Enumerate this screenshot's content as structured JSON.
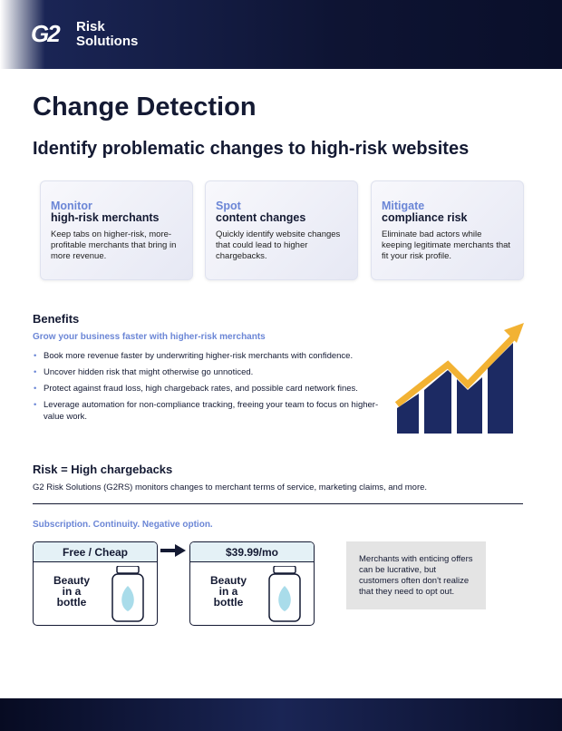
{
  "header": {
    "logo_mark": "G2",
    "logo_line1": "Risk",
    "logo_line2": "Solutions"
  },
  "title": "Change Detection",
  "subtitle": "Identify problematic changes to high-risk websites",
  "cards": [
    {
      "keyword": "Monitor",
      "subject": "high-risk merchants",
      "text": "Keep tabs on higher-risk, more-profitable merchants that bring in more revenue."
    },
    {
      "keyword": "Spot",
      "subject": "content changes",
      "text": "Quickly identify website changes that could lead to higher chargebacks."
    },
    {
      "keyword": "Mitigate",
      "subject": "compliance risk",
      "text": "Eliminate bad actors while keeping legitimate merchants that fit your risk profile."
    }
  ],
  "benefits": {
    "heading": "Benefits",
    "subheading": "Grow your business faster with higher-risk merchants",
    "items": [
      "Book more revenue faster by underwriting higher-risk merchants with confidence.",
      "Uncover hidden risk that might otherwise go unnoticed.",
      "Protect against fraud loss, high chargeback rates, and possible card network fines.",
      "Leverage automation for non-compliance tracking, freeing your team to focus on higher-value work."
    ]
  },
  "risk": {
    "heading": "Risk = High chargebacks",
    "text": "G2 Risk Solutions (G2RS) monitors changes to merchant terms of service, marketing claims, and more."
  },
  "subscription": {
    "heading": "Subscription. Continuity. Negative option.",
    "boxes": [
      {
        "label": "Free / Cheap",
        "product": [
          "Beauty",
          "in a",
          "bottle"
        ]
      },
      {
        "label": "$39.99/mo",
        "product": [
          "Beauty",
          "in a",
          "bottle"
        ]
      }
    ],
    "note": "Merchants with enticing offers can be lucrative, but customers often don't realize that they need to opt out."
  }
}
